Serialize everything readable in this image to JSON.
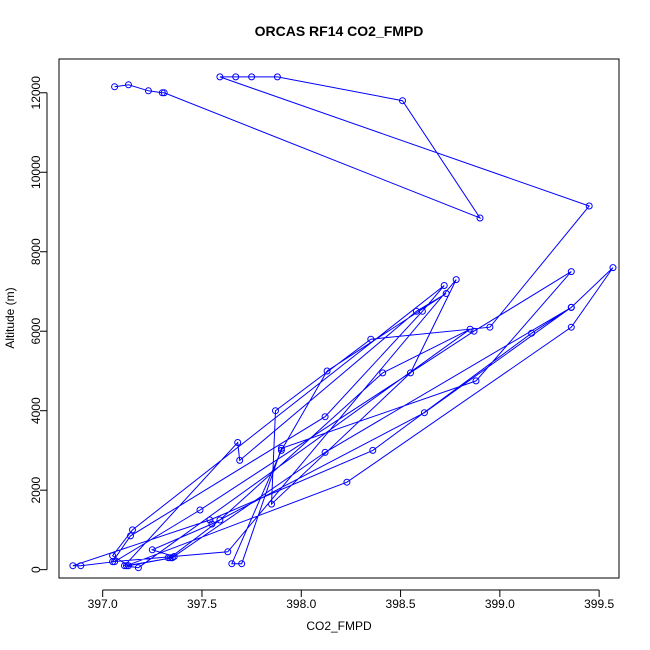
{
  "chart_data": {
    "type": "line",
    "title": "ORCAS RF14 CO2_FMPD",
    "xlabel": "CO2_FMPD",
    "ylabel": "Altitude (m)",
    "xlim": [
      396.78,
      399.6
    ],
    "ylim": [
      -210,
      12850
    ],
    "xticks": [
      397.0,
      397.5,
      398.0,
      398.5,
      399.0,
      399.5
    ],
    "xtick_labels": [
      "397.0",
      "397.5",
      "398.0",
      "398.5",
      "399.0",
      "399.5"
    ],
    "yticks": [
      0,
      2000,
      4000,
      6000,
      8000,
      10000,
      12000
    ],
    "ytick_labels": [
      "0",
      "2000",
      "4000",
      "6000",
      "8000",
      "10000",
      "12000"
    ],
    "grid": false,
    "series": [
      {
        "color": "#0000ff",
        "marker": "open-circle",
        "x": [
          397.06,
          397.13,
          397.23,
          397.3,
          397.31,
          398.9,
          398.51,
          397.88,
          397.75,
          397.67,
          397.59,
          399.45,
          398.95,
          398.35,
          397.87,
          397.85,
          398.55,
          398.78,
          397.63,
          397.05,
          397.14,
          398.12,
          398.61,
          398.72,
          397.15,
          397.05,
          397.13,
          397.35,
          397.33,
          397.34,
          397.59,
          398.41,
          398.85,
          397.18,
          397.11,
          397.68,
          397.69,
          398.58,
          398.73,
          398.13,
          397.9,
          397.65,
          397.7,
          397.9,
          398.88,
          399.36,
          398.87,
          397.49,
          397.06,
          396.89,
          396.85,
          397.54,
          398.36,
          399.16,
          399.36,
          399.57,
          399.36,
          398.23,
          397.12,
          397.35,
          398.12,
          399.36,
          398.62,
          397.55,
          397.25,
          397.36
        ],
        "y": [
          12150,
          12200,
          12050,
          12000,
          12000,
          8850,
          11800,
          12400,
          12400,
          12400,
          12400,
          9150,
          6100,
          5800,
          4000,
          1650,
          4950,
          7300,
          450,
          200,
          850,
          3850,
          6500,
          7150,
          1000,
          350,
          100,
          300,
          300,
          300,
          1250,
          4950,
          6050,
          50,
          100,
          3200,
          2750,
          6500,
          6950,
          5000,
          3000,
          150,
          150,
          3050,
          4750,
          7500,
          6000,
          1500,
          200,
          100,
          100,
          1250,
          3000,
          5950,
          6600,
          7600,
          6100,
          2200,
          100,
          300,
          2950,
          6600,
          3950,
          1150,
          500,
          330
        ]
      }
    ]
  }
}
